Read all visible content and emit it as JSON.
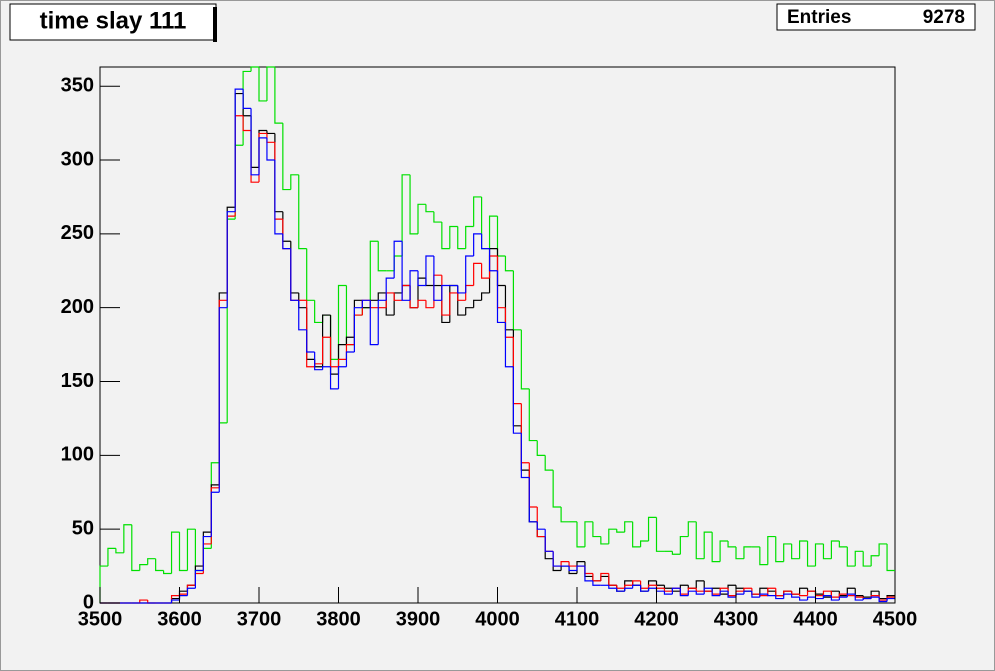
{
  "chart_data": {
    "type": "histogram",
    "title": "time slay 111",
    "stats": {
      "label": "Entries",
      "value": 9278
    },
    "bins": [
      3500,
      3510,
      3520,
      3530,
      3540,
      3550,
      3560,
      3570,
      3580,
      3590,
      3600,
      3610,
      3620,
      3630,
      3640,
      3650,
      3660,
      3670,
      3680,
      3690,
      3700,
      3710,
      3720,
      3730,
      3740,
      3750,
      3760,
      3770,
      3780,
      3790,
      3800,
      3810,
      3820,
      3830,
      3840,
      3850,
      3860,
      3870,
      3880,
      3890,
      3900,
      3910,
      3920,
      3930,
      3940,
      3950,
      3960,
      3970,
      3980,
      3990,
      4000,
      4010,
      4020,
      4030,
      4040,
      4050,
      4060,
      4070,
      4080,
      4090,
      4100,
      4110,
      4120,
      4130,
      4140,
      4150,
      4160,
      4170,
      4180,
      4190,
      4200,
      4210,
      4220,
      4230,
      4240,
      4250,
      4260,
      4270,
      4280,
      4290,
      4300,
      4310,
      4320,
      4330,
      4340,
      4350,
      4360,
      4370,
      4380,
      4390,
      4400,
      4410,
      4420,
      4430,
      4440,
      4450,
      4460,
      4470,
      4480,
      4490,
      4500
    ],
    "series": [
      {
        "color": "#00e000",
        "values": [
          25,
          37,
          34,
          53,
          22,
          26,
          30,
          22,
          20,
          48,
          22,
          50,
          22,
          37,
          95,
          122,
          260,
          310,
          360,
          363,
          340,
          363,
          325,
          280,
          290,
          240,
          205,
          190,
          195,
          165,
          215,
          175,
          195,
          200,
          245,
          225,
          225,
          235,
          290,
          250,
          270,
          265,
          258,
          240,
          255,
          240,
          255,
          275,
          240,
          262,
          235,
          225,
          185,
          145,
          110,
          100,
          90,
          65,
          55,
          55,
          38,
          55,
          45,
          40,
          50,
          48,
          55,
          38,
          42,
          58,
          35,
          35,
          33,
          45,
          55,
          30,
          48,
          28,
          42,
          38,
          30,
          38,
          38,
          26,
          45,
          28,
          40,
          30,
          42,
          25,
          40,
          30,
          42,
          38,
          25,
          35,
          25,
          32,
          40,
          22
        ]
      },
      {
        "color": "#000000",
        "values": [
          0,
          0,
          0,
          0,
          0,
          0,
          0,
          0,
          0,
          3,
          8,
          12,
          25,
          48,
          80,
          210,
          268,
          345,
          330,
          295,
          320,
          318,
          265,
          245,
          210,
          200,
          165,
          160,
          195,
          155,
          175,
          180,
          205,
          200,
          205,
          210,
          195,
          210,
          215,
          200,
          220,
          215,
          215,
          190,
          215,
          195,
          200,
          205,
          210,
          240,
          215,
          185,
          120,
          90,
          55,
          45,
          30,
          22,
          25,
          20,
          28,
          18,
          15,
          18,
          12,
          8,
          15,
          12,
          8,
          15,
          12,
          10,
          8,
          12,
          10,
          15,
          8,
          10,
          6,
          12,
          10,
          8,
          6,
          10,
          8,
          5,
          8,
          6,
          10,
          8,
          6,
          4,
          8,
          5,
          10,
          5,
          4,
          8,
          3,
          5
        ]
      },
      {
        "color": "#ff0000",
        "values": [
          0,
          0,
          0,
          0,
          0,
          2,
          0,
          0,
          0,
          5,
          6,
          12,
          20,
          40,
          78,
          205,
          262,
          330,
          320,
          285,
          318,
          312,
          260,
          240,
          205,
          205,
          160,
          162,
          180,
          160,
          165,
          175,
          195,
          205,
          200,
          200,
          210,
          205,
          215,
          200,
          205,
          200,
          222,
          195,
          210,
          205,
          215,
          230,
          220,
          235,
          200,
          180,
          135,
          95,
          65,
          45,
          35,
          25,
          28,
          25,
          25,
          20,
          15,
          20,
          12,
          10,
          12,
          15,
          10,
          12,
          10,
          8,
          10,
          6,
          10,
          8,
          8,
          6,
          10,
          5,
          8,
          10,
          6,
          5,
          10,
          5,
          8,
          6,
          5,
          8,
          5,
          8,
          4,
          6,
          5,
          4,
          3,
          5,
          2,
          4
        ]
      },
      {
        "color": "#0000ff",
        "values": [
          0,
          0,
          0,
          0,
          0,
          0,
          0,
          0,
          0,
          2,
          5,
          10,
          22,
          45,
          75,
          200,
          265,
          348,
          335,
          290,
          315,
          300,
          250,
          240,
          205,
          185,
          170,
          158,
          160,
          145,
          160,
          170,
          200,
          205,
          175,
          205,
          220,
          245,
          205,
          225,
          215,
          235,
          205,
          215,
          215,
          210,
          235,
          250,
          240,
          225,
          190,
          160,
          115,
          85,
          55,
          50,
          35,
          25,
          25,
          22,
          25,
          15,
          12,
          12,
          10,
          8,
          10,
          12,
          8,
          10,
          8,
          6,
          10,
          5,
          8,
          6,
          10,
          5,
          8,
          4,
          6,
          8,
          4,
          6,
          5,
          3,
          6,
          4,
          2,
          4,
          3,
          5,
          2,
          4,
          6,
          2,
          3,
          4,
          1,
          3
        ]
      }
    ],
    "xlim": [
      3500,
      4500
    ],
    "xticks": [
      3500,
      3600,
      3700,
      3800,
      3900,
      4000,
      4100,
      4200,
      4300,
      4400,
      4500
    ],
    "ylim": [
      0,
      363
    ],
    "yticks": [
      0,
      50,
      100,
      150,
      200,
      250,
      300,
      350
    ]
  }
}
